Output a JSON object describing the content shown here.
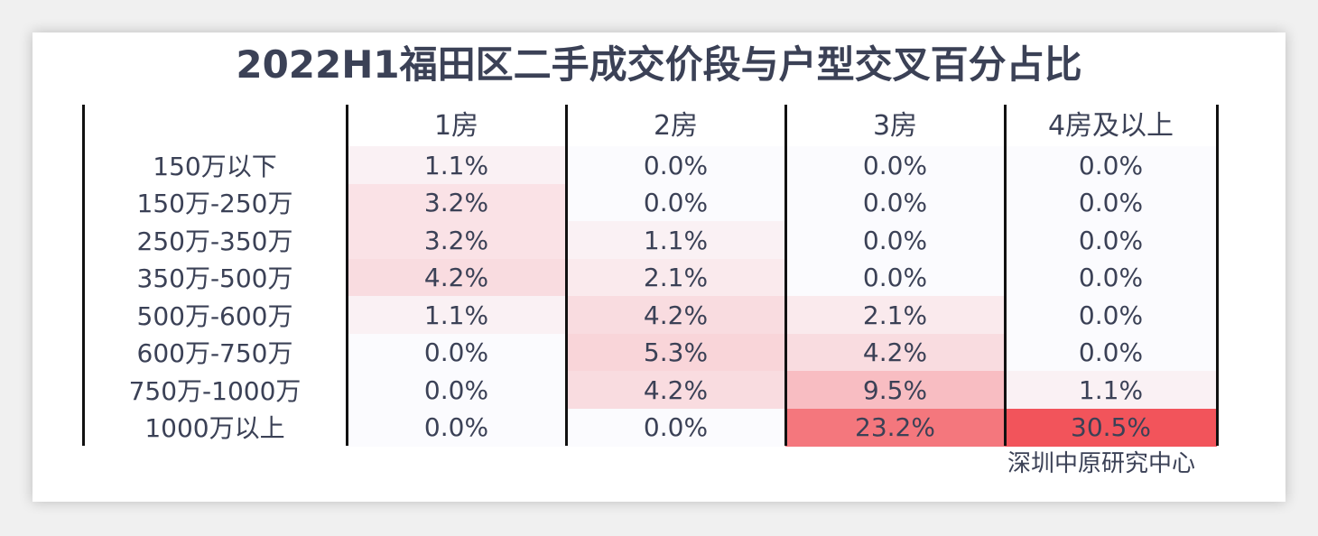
{
  "title": "2022H1福田区二手成交价段与户型交叉百分占比",
  "source": "深圳中原研究中心",
  "chart_data": {
    "type": "heatmap",
    "title": "2022H1福田区二手成交价段与户型交叉百分占比",
    "columns": [
      "1房",
      "2房",
      "3房",
      "4房及以上"
    ],
    "rows": [
      "150万以下",
      "150万-250万",
      "250万-350万",
      "350万-500万",
      "500万-600万",
      "600万-750万",
      "750万-1000万",
      "1000万以上"
    ],
    "values": [
      [
        1.1,
        0.0,
        0.0,
        0.0
      ],
      [
        3.2,
        0.0,
        0.0,
        0.0
      ],
      [
        3.2,
        1.1,
        0.0,
        0.0
      ],
      [
        4.2,
        2.1,
        0.0,
        0.0
      ],
      [
        1.1,
        4.2,
        2.1,
        0.0
      ],
      [
        0.0,
        5.3,
        4.2,
        0.0
      ],
      [
        0.0,
        4.2,
        9.5,
        1.1
      ],
      [
        0.0,
        0.0,
        23.2,
        30.5
      ]
    ],
    "labels": [
      [
        "1.1%",
        "0.0%",
        "0.0%",
        "0.0%"
      ],
      [
        "3.2%",
        "0.0%",
        "0.0%",
        "0.0%"
      ],
      [
        "3.2%",
        "1.1%",
        "0.0%",
        "0.0%"
      ],
      [
        "4.2%",
        "2.1%",
        "0.0%",
        "0.0%"
      ],
      [
        "1.1%",
        "4.2%",
        "2.1%",
        "0.0%"
      ],
      [
        "0.0%",
        "5.3%",
        "4.2%",
        "0.0%"
      ],
      [
        "0.0%",
        "4.2%",
        "9.5%",
        "1.1%"
      ],
      [
        "0.0%",
        "0.0%",
        "23.2%",
        "30.5%"
      ]
    ],
    "color_low": "#fbfbfe",
    "color_high": "#f2545b"
  }
}
